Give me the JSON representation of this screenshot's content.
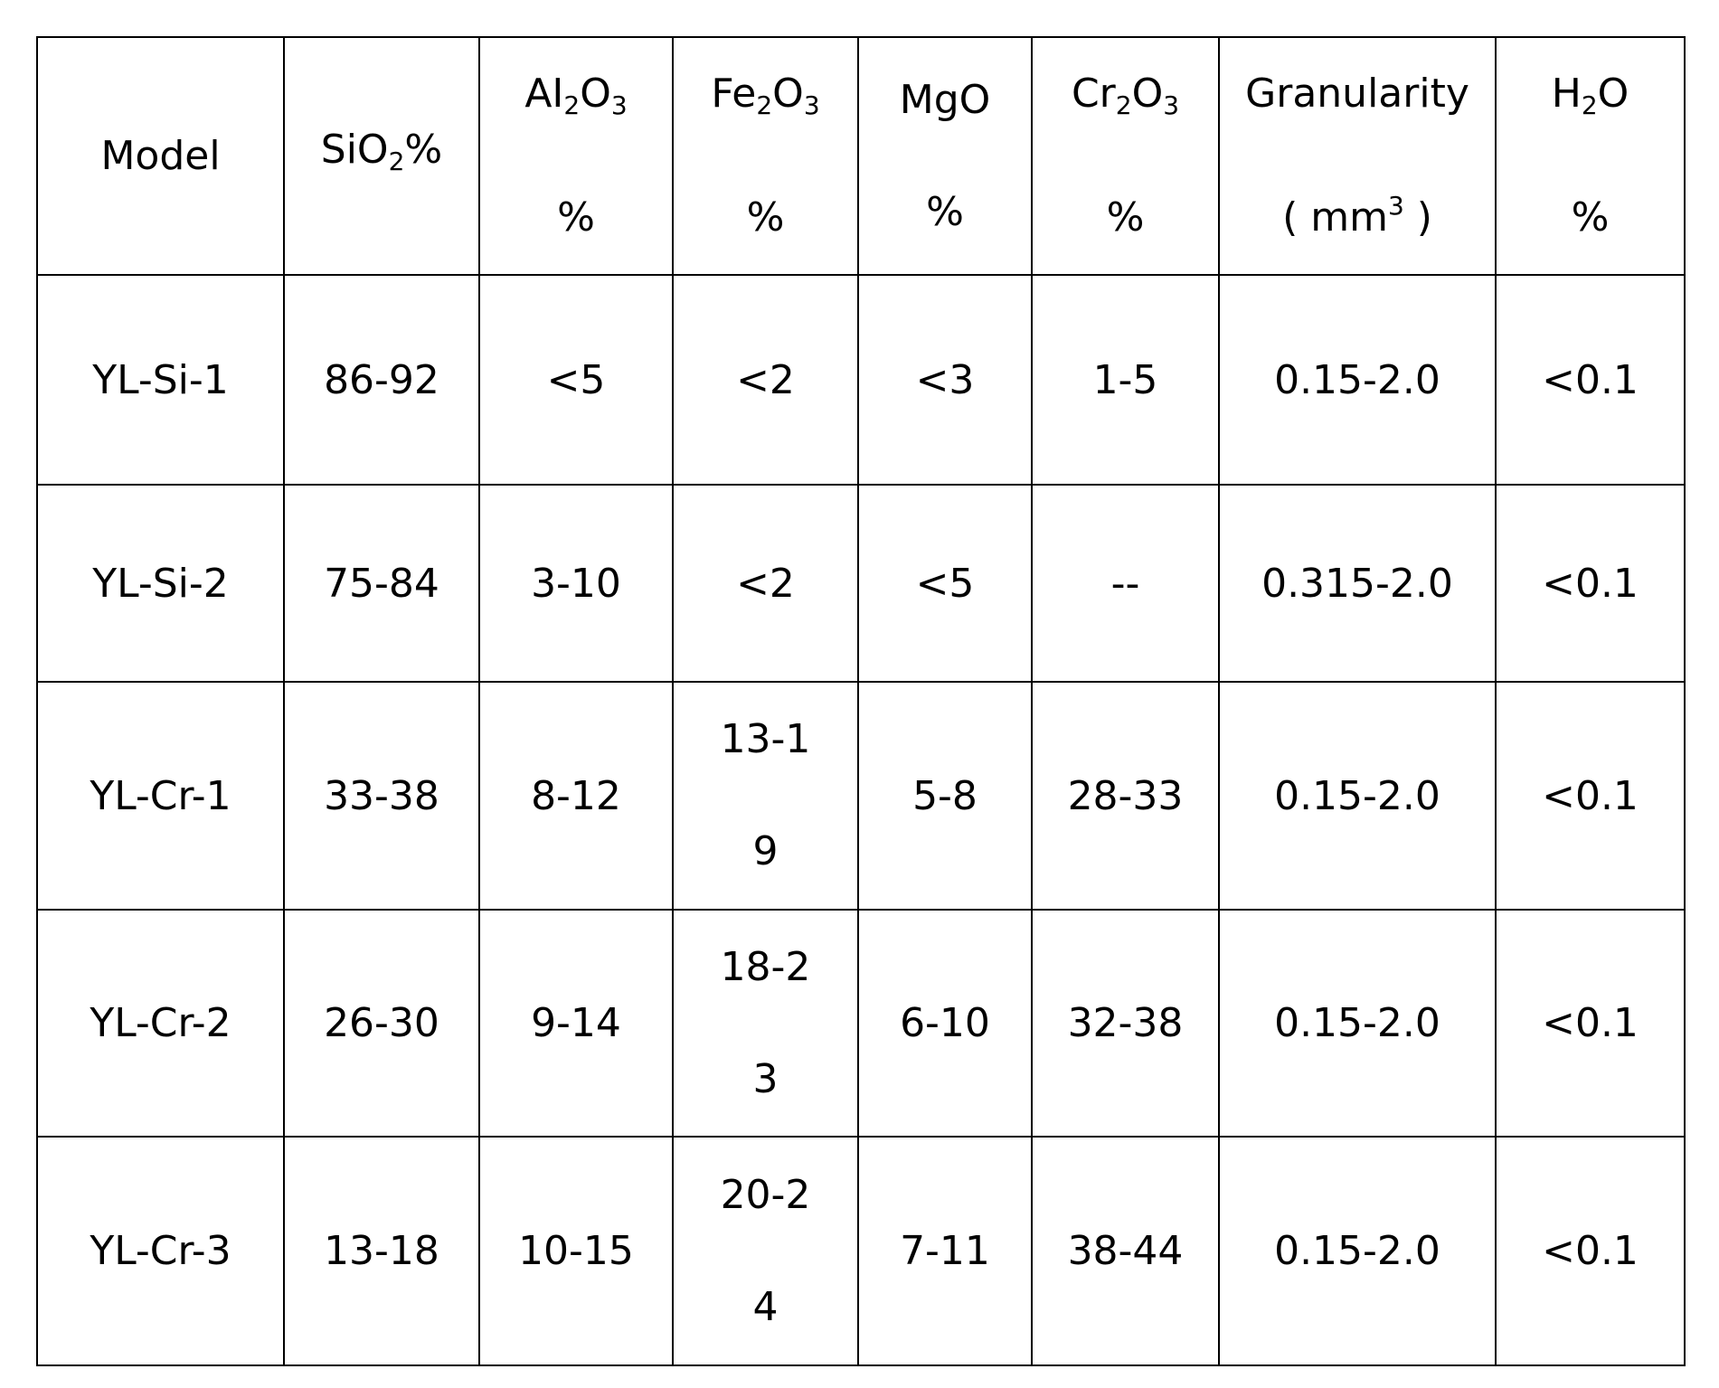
{
  "table": {
    "header": [
      {
        "lines": [
          [
            "Model"
          ]
        ]
      },
      {
        "lines": [
          [
            "SiO",
            {
              "sub": "2"
            },
            "%"
          ]
        ]
      },
      {
        "lines": [
          [
            "AI",
            {
              "sub": "2"
            },
            "O",
            {
              "sub": "3"
            }
          ],
          [
            "%"
          ]
        ]
      },
      {
        "lines": [
          [
            "Fe",
            {
              "sub": "2"
            },
            "O",
            {
              "sub": "3"
            }
          ],
          [
            "%"
          ]
        ]
      },
      {
        "lines": [
          [
            "MgO"
          ],
          [
            "%"
          ]
        ]
      },
      {
        "lines": [
          [
            "Cr",
            {
              "sub": "2"
            },
            "O",
            {
              "sub": "3"
            }
          ],
          [
            "%"
          ]
        ]
      },
      {
        "lines": [
          [
            "Granularity"
          ],
          [
            "( mm",
            {
              "sup": "3"
            },
            " )"
          ]
        ]
      },
      {
        "lines": [
          [
            "H",
            {
              "sub": "2"
            },
            "O"
          ],
          [
            "%"
          ]
        ]
      }
    ],
    "rows": [
      [
        "YL-Si-1",
        "86-92",
        "<5",
        "<2",
        "<3",
        "1-5",
        "0.15-2.0",
        "<0.1"
      ],
      [
        "YL-Si-2",
        "75-84",
        "3-10",
        "<2",
        "<5",
        "--",
        "0.315-2.0",
        "<0.1"
      ],
      [
        "YL-Cr-1",
        "33-38",
        "8-12",
        [
          "13-1",
          "9"
        ],
        "5-8",
        "28-33",
        "0.15-2.0",
        "<0.1"
      ],
      [
        "YL-Cr-2",
        "26-30",
        "9-14",
        [
          "18-2",
          "3"
        ],
        "6-10",
        "32-38",
        "0.15-2.0",
        "<0.1"
      ],
      [
        "YL-Cr-3",
        "13-18",
        "10-15",
        [
          "20-2",
          "4"
        ],
        "7-11",
        "38-44",
        "0.15-2.0",
        "<0.1"
      ]
    ]
  }
}
